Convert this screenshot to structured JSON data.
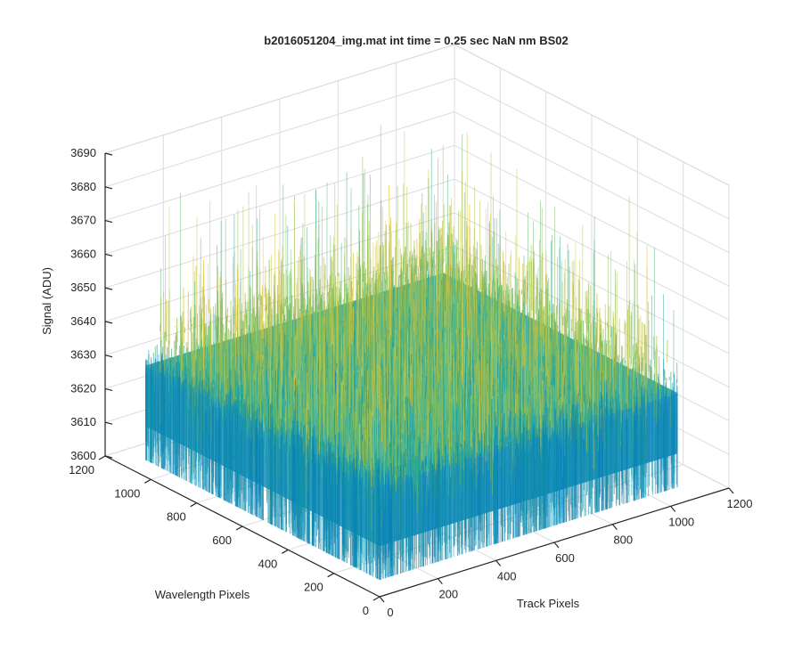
{
  "chart_data": {
    "type": "surface",
    "title": "b2016051204_img.mat int time = 0.25 sec  NaN nm BS02",
    "xlabel": "Track Pixels",
    "ylabel": "Wavelength Pixels",
    "zlabel": "Signal (ADU)",
    "xlim": [
      0,
      1200
    ],
    "ylim": [
      0,
      1200
    ],
    "zlim": [
      3600,
      3690
    ],
    "x_ticks": [
      "0",
      "200",
      "400",
      "600",
      "800",
      "1000",
      "1200"
    ],
    "y_ticks": [
      "0",
      "200",
      "400",
      "600",
      "800",
      "1000",
      "1200"
    ],
    "z_ticks": [
      "3600",
      "3610",
      "3620",
      "3630",
      "3640",
      "3650",
      "3660",
      "3670",
      "3680",
      "3690"
    ],
    "data_extent": {
      "x_max": 1024,
      "y_max": 1024
    },
    "signal_summary": {
      "mean": 3633,
      "min": 3605,
      "max": 3690
    },
    "grid": true,
    "colormap": "parula",
    "colors": {
      "low": "#0072BD",
      "mid": "#1FA8A0",
      "high": "#E6C73C",
      "axis": "#262626",
      "grid": "#DCDCDC"
    }
  }
}
